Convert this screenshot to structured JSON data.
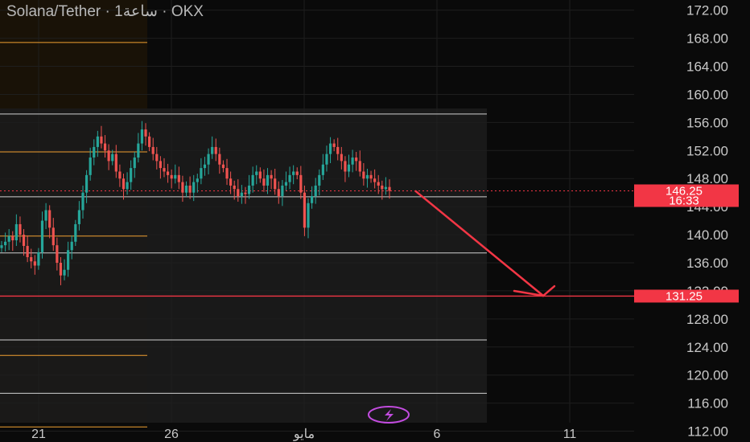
{
  "chart_data": {
    "type": "candlestick",
    "title": "Solana/Tether · 1ساعة · OKX",
    "ylim": [
      110,
      174
    ],
    "y_ticks": [
      "172.00",
      "168.00",
      "164.00",
      "160.00",
      "156.00",
      "152.00",
      "148.00",
      "144.00",
      "140.00",
      "136.00",
      "132.00",
      "128.00",
      "124.00",
      "120.00",
      "116.00",
      "112.00"
    ],
    "x_ticks": [
      {
        "label": "21",
        "x": 0
      },
      {
        "label": "26",
        "x": 5
      },
      {
        "label": "مايو",
        "x": 10
      },
      {
        "label": "6",
        "x": 15
      },
      {
        "label": "11",
        "x": 20
      }
    ],
    "current_price": {
      "label": "146.25",
      "countdown": "16:33",
      "value": 146.25
    },
    "target_price": {
      "label": "131.25",
      "value": 131.25
    },
    "horizontal_levels_white": [
      157.2,
      145.4,
      137.4,
      125.0,
      117.4
    ],
    "horizontal_levels_orange": [
      167.4,
      151.8,
      139.8,
      122.8,
      112.6
    ],
    "projection_arrow": {
      "from": {
        "x": 14.2,
        "y": 146.2
      },
      "to": {
        "x": 19.0,
        "y": 131.3
      }
    },
    "colors": {
      "up": "#26a69a",
      "down": "#ef5350",
      "accent": "#f23645",
      "orange": "#f0a030",
      "white_level": "#d0d0d0",
      "logo": "#c34ce0"
    },
    "candles_close": [
      138.5,
      139.0,
      139.8,
      139.2,
      141.5,
      140.0,
      138.4,
      136.8,
      136.2,
      135.6,
      137.5,
      142.0,
      143.5,
      141.0,
      138.5,
      136.0,
      134.2,
      135.0,
      137.8,
      139.0,
      141.5,
      143.5,
      146.0,
      148.5,
      151.0,
      152.5,
      154.0,
      153.0,
      152.0,
      150.5,
      151.5,
      149.0,
      148.0,
      146.5,
      147.5,
      149.5,
      151.0,
      153.0,
      155.0,
      154.0,
      152.5,
      151.5,
      150.5,
      149.5,
      149.0,
      148.5,
      148.0,
      148.5,
      147.5,
      146.0,
      147.0,
      146.0,
      147.5,
      148.0,
      149.5,
      150.0,
      151.5,
      152.5,
      151.5,
      150.0,
      149.5,
      148.0,
      147.0,
      146.5,
      145.5,
      146.0,
      145.8,
      147.0,
      148.5,
      149.0,
      148.0,
      147.0,
      148.5,
      148.0,
      146.5,
      145.5,
      147.0,
      147.5,
      148.5,
      149.0,
      148.5,
      146.0,
      141.0,
      144.5,
      145.5,
      147.0,
      148.5,
      150.0,
      151.5,
      153.0,
      152.5,
      151.5,
      150.5,
      149.0,
      150.0,
      151.0,
      150.5,
      149.0,
      148.0,
      148.5,
      148.0,
      147.5,
      147.0,
      146.5,
      146.8,
      146.25
    ]
  }
}
